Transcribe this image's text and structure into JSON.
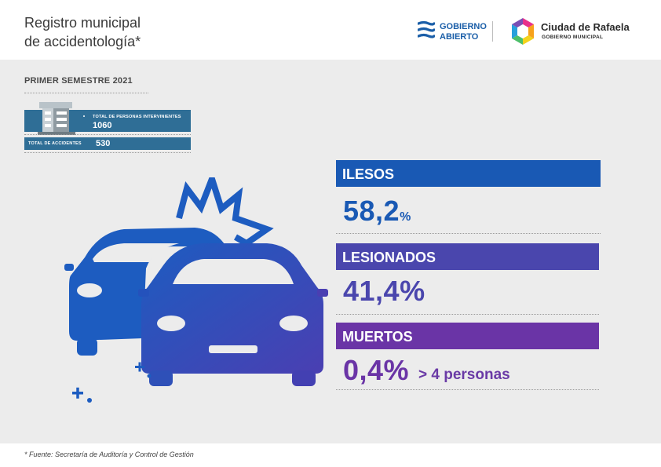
{
  "header": {
    "title_line1": "Registro municipal",
    "title_line2": "de accidentología*",
    "logo_gobierno_line1": "GOBIERNO",
    "logo_gobierno_line2": "ABIERTO",
    "logo_city_name": "Ciudad de Rafaela",
    "logo_city_sub": "GOBIERNO MUNICIPAL"
  },
  "period": "PRIMER SEMESTRE 2021",
  "summary": {
    "persons_label": "TOTAL DE PERSONAS INTERVINIENTES",
    "persons_value": "1060",
    "accidents_label": "TOTAL DE ACCIDENTES",
    "accidents_value": "530"
  },
  "colors": {
    "ilesos": "#1959b4",
    "lesionados": "#4a46ad",
    "muertos": "#6a34a6",
    "summary_box": "#2f6e96",
    "panel": "#ececec"
  },
  "icons": [
    "building-icon",
    "crashed-cars-icon",
    "sparkle-icon",
    "gobierno-abierto-logo-icon",
    "ciudad-rafaela-logo-icon"
  ],
  "chart_data": {
    "type": "table",
    "categories": [
      "ILESOS",
      "LESIONADOS",
      "MUERTOS"
    ],
    "values": [
      58.2,
      41.4,
      0.4
    ],
    "value_labels": [
      "58,2",
      "41,4%",
      "0,4%"
    ],
    "percent_suffix_small": "%",
    "notes": [
      "",
      "",
      "> 4 personas"
    ]
  },
  "footer": "* Fuente:  Secretaría de Auditoría y Control de Gestión"
}
